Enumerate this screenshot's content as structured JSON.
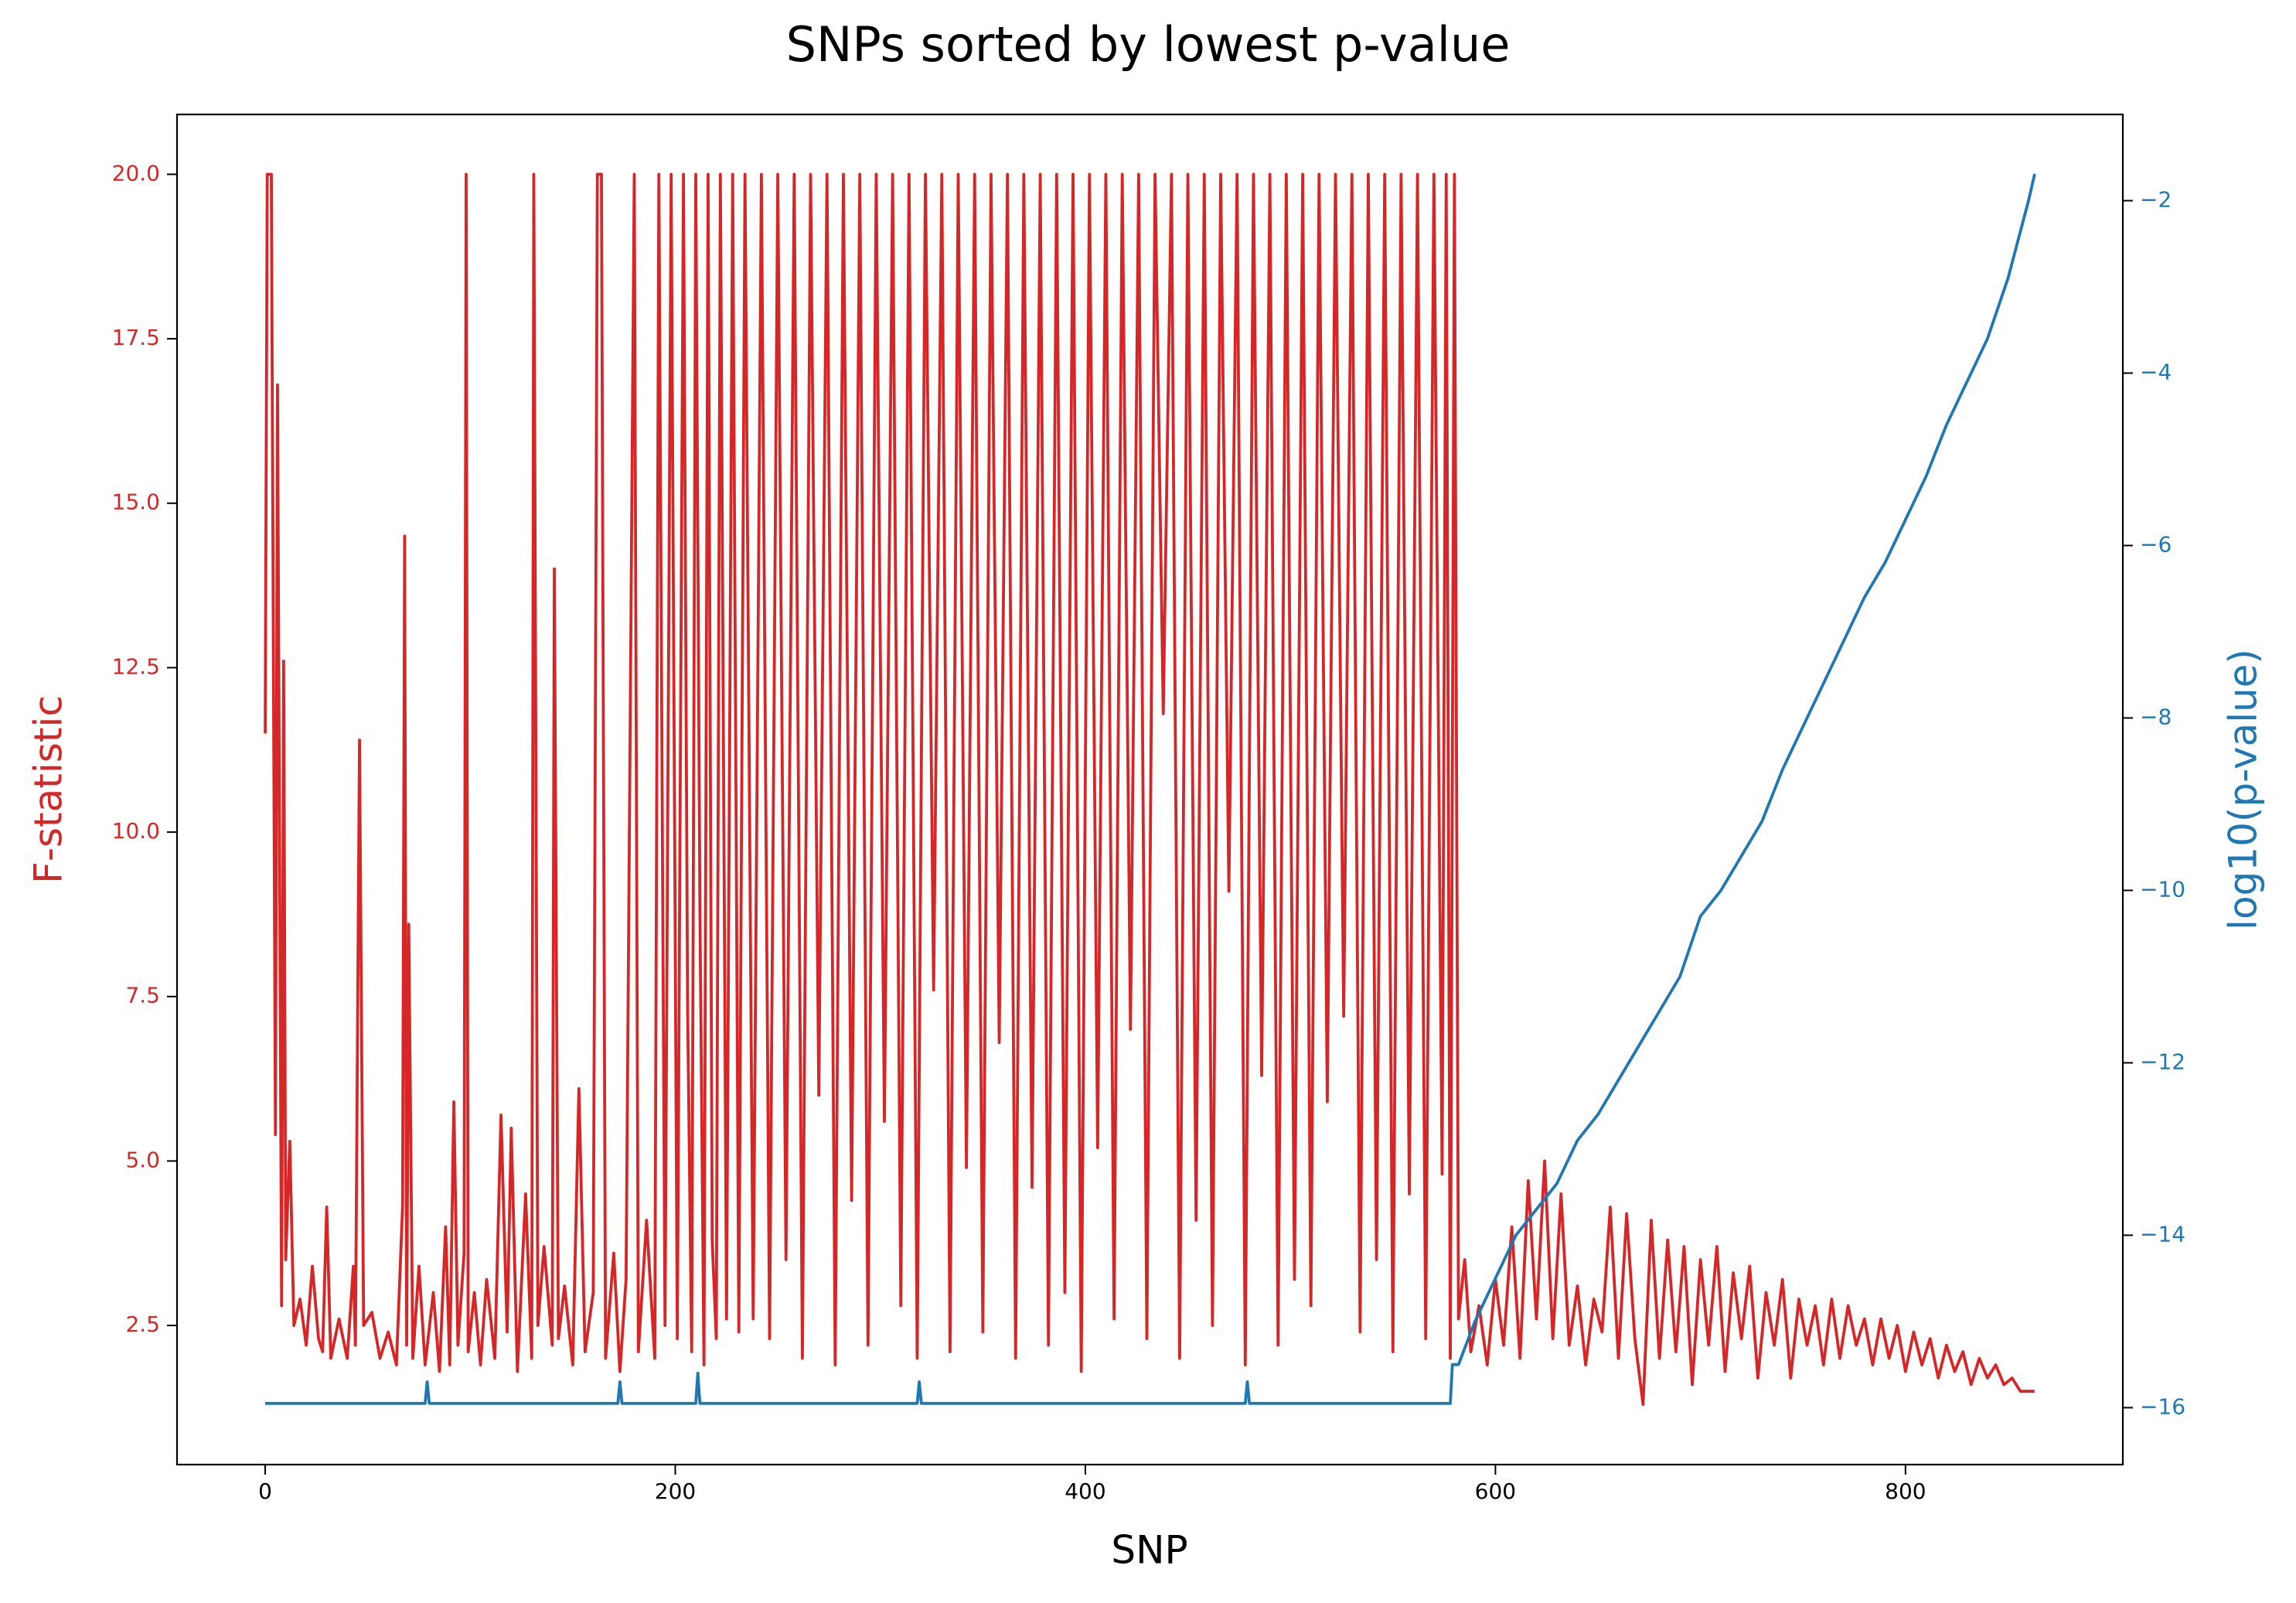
{
  "chart_data": {
    "type": "line",
    "title": "SNPs sorted by lowest p-value",
    "xlabel": "SNP",
    "ylabel": "F-statistic",
    "y2label": "log10(p-value)",
    "xlim": [
      -43,
      906
    ],
    "ylim": [
      0.385,
      20.91
    ],
    "y2lim": [
      -16.66,
      -1.0
    ],
    "xticks": [
      0,
      200,
      400,
      600,
      800
    ],
    "yticks": [
      2.5,
      {
        "value": 5,
        "label": "5.0"
      },
      7.5,
      {
        "value": 10,
        "label": "10.0"
      },
      12.5,
      {
        "value": 15,
        "label": "15.0"
      },
      17.5,
      {
        "value": 20,
        "label": "20.0"
      }
    ],
    "y2ticks": [
      {
        "value": -16,
        "label": "−16"
      },
      {
        "value": -14,
        "label": "−14"
      },
      {
        "value": -12,
        "label": "−12"
      },
      {
        "value": -10,
        "label": "−10"
      },
      {
        "value": -8,
        "label": "−8"
      },
      {
        "value": -6,
        "label": "−6"
      },
      {
        "value": -4,
        "label": "−4"
      },
      {
        "value": -2,
        "label": "−2"
      }
    ],
    "series": [
      {
        "name": "F-statistic",
        "color": "#d62728",
        "x": [
          0,
          1,
          3,
          5,
          6,
          8,
          9,
          10,
          12,
          14,
          17,
          20,
          23,
          26,
          28,
          30,
          32,
          36,
          40,
          43,
          44,
          46,
          48,
          52,
          56,
          60,
          64,
          67,
          68,
          69,
          70,
          72,
          75,
          78,
          82,
          85,
          88,
          90,
          92,
          94,
          97,
          98,
          99,
          102,
          105,
          108,
          112,
          115,
          118,
          120,
          123,
          127,
          130,
          131,
          133,
          136,
          140,
          141,
          143,
          146,
          150,
          153,
          156,
          160,
          162,
          164,
          166,
          170,
          173,
          176,
          180,
          182,
          186,
          190,
          192,
          195,
          198,
          201,
          204,
          206,
          208,
          210,
          212,
          214,
          216,
          218,
          220,
          222,
          225,
          228,
          231,
          234,
          238,
          242,
          246,
          250,
          254,
          258,
          262,
          266,
          270,
          274,
          278,
          282,
          286,
          290,
          294,
          298,
          302,
          306,
          310,
          314,
          318,
          322,
          326,
          330,
          334,
          338,
          342,
          346,
          350,
          354,
          358,
          362,
          366,
          370,
          374,
          378,
          382,
          386,
          390,
          394,
          398,
          402,
          406,
          410,
          414,
          418,
          422,
          426,
          430,
          434,
          438,
          442,
          446,
          450,
          454,
          458,
          462,
          466,
          470,
          474,
          478,
          482,
          486,
          490,
          494,
          498,
          502,
          506,
          510,
          514,
          518,
          522,
          526,
          530,
          534,
          538,
          542,
          546,
          550,
          554,
          558,
          562,
          566,
          570,
          574,
          576,
          578,
          580,
          582,
          585,
          588,
          592,
          596,
          600,
          604,
          608,
          612,
          616,
          620,
          624,
          628,
          632,
          636,
          640,
          644,
          648,
          652,
          656,
          660,
          664,
          668,
          672,
          676,
          680,
          684,
          688,
          692,
          696,
          700,
          704,
          708,
          712,
          716,
          720,
          724,
          728,
          732,
          736,
          740,
          744,
          748,
          752,
          756,
          760,
          764,
          768,
          772,
          776,
          780,
          784,
          788,
          792,
          796,
          800,
          804,
          808,
          812,
          816,
          820,
          824,
          828,
          832,
          836,
          840,
          844,
          848,
          852,
          856,
          860,
          863
        ],
        "values": [
          11.5,
          20,
          20,
          5.4,
          16.8,
          2.8,
          12.6,
          3.5,
          5.3,
          2.5,
          2.9,
          2.2,
          3.4,
          2.3,
          2.1,
          4.3,
          2.0,
          2.6,
          2.0,
          3.4,
          2.2,
          11.4,
          2.5,
          2.7,
          2.0,
          2.4,
          1.9,
          4.3,
          14.5,
          2.2,
          8.6,
          2.0,
          3.4,
          1.9,
          3.0,
          1.8,
          4.0,
          1.9,
          5.9,
          2.2,
          3.6,
          20,
          2.1,
          3.0,
          1.9,
          3.2,
          2.0,
          5.7,
          2.4,
          5.5,
          1.8,
          4.5,
          2.0,
          20,
          2.5,
          3.7,
          2.2,
          14.0,
          2.3,
          3.1,
          1.9,
          6.1,
          2.1,
          3.0,
          20,
          20,
          2.0,
          3.6,
          1.8,
          3.2,
          20,
          2.1,
          4.1,
          2.0,
          20,
          2.5,
          20,
          2.3,
          20,
          7.4,
          2.1,
          20,
          8.9,
          1.9,
          20,
          3.8,
          2.3,
          20,
          2.6,
          20,
          2.4,
          20,
          2.6,
          20,
          2.3,
          20,
          3.5,
          20,
          2.0,
          20,
          6.0,
          20,
          1.9,
          20,
          4.4,
          20,
          2.2,
          20,
          5.6,
          20,
          2.8,
          20,
          2.0,
          20,
          7.6,
          20,
          2.1,
          20,
          4.9,
          20,
          2.4,
          20,
          6.8,
          20,
          2.0,
          20,
          4.6,
          20,
          2.2,
          20,
          3.0,
          20,
          1.8,
          20,
          5.2,
          20,
          2.6,
          20,
          7.0,
          20,
          2.3,
          20,
          11.8,
          20,
          2.0,
          20,
          4.1,
          20,
          2.5,
          20,
          9.1,
          20,
          1.9,
          20,
          6.3,
          20,
          2.2,
          20,
          3.2,
          20,
          2.8,
          20,
          5.9,
          20,
          7.2,
          20,
          2.4,
          20,
          3.5,
          20,
          2.1,
          20,
          4.5,
          20,
          2.3,
          20,
          4.8,
          20,
          2.0,
          20,
          2.6,
          3.5,
          2.1,
          2.8,
          1.9,
          3.2,
          2.2,
          4.0,
          2.0,
          4.7,
          2.6,
          5.0,
          2.3,
          4.5,
          2.2,
          3.1,
          1.9,
          2.9,
          2.4,
          4.3,
          2.0,
          4.2,
          2.3,
          1.3,
          4.1,
          2.0,
          3.8,
          2.1,
          3.7,
          1.6,
          3.5,
          2.2,
          3.7,
          1.8,
          3.3,
          2.3,
          3.4,
          1.7,
          3.0,
          2.2,
          3.2,
          1.7,
          2.9,
          2.2,
          2.8,
          1.9,
          2.9,
          2.0,
          2.8,
          2.2,
          2.6,
          1.9,
          2.6,
          2.0,
          2.5,
          1.8,
          2.4,
          1.9,
          2.3,
          1.7,
          2.2,
          1.8,
          2.1,
          1.6,
          2.0,
          1.7,
          1.9,
          1.6,
          1.7,
          1.5,
          1.5,
          1.5
        ]
      },
      {
        "name": "log10(p-value)",
        "color": "#1f77b4",
        "axis": "y2",
        "x": [
          0,
          78,
          79,
          80,
          172,
          173,
          174,
          210,
          211,
          212,
          318,
          319,
          320,
          478,
          479,
          480,
          578,
          579,
          582,
          590,
          600,
          610,
          620,
          630,
          640,
          650,
          660,
          670,
          680,
          690,
          700,
          710,
          720,
          730,
          740,
          750,
          760,
          770,
          780,
          790,
          800,
          810,
          820,
          830,
          840,
          850,
          860,
          863
        ],
        "values": [
          -15.95,
          -15.95,
          -15.7,
          -15.95,
          -15.95,
          -15.7,
          -15.95,
          -15.95,
          -15.6,
          -15.95,
          -15.95,
          -15.7,
          -15.95,
          -15.95,
          -15.7,
          -15.95,
          -15.95,
          -15.5,
          -15.5,
          -15.0,
          -14.5,
          -14.0,
          -13.7,
          -13.4,
          -12.9,
          -12.6,
          -12.2,
          -11.8,
          -11.4,
          -11.0,
          -10.3,
          -10.0,
          -9.6,
          -9.2,
          -8.6,
          -8.1,
          -7.6,
          -7.1,
          -6.6,
          -6.2,
          -5.7,
          -5.2,
          -4.6,
          -4.1,
          -3.6,
          -2.9,
          -2.0,
          -1.69
        ]
      }
    ]
  }
}
